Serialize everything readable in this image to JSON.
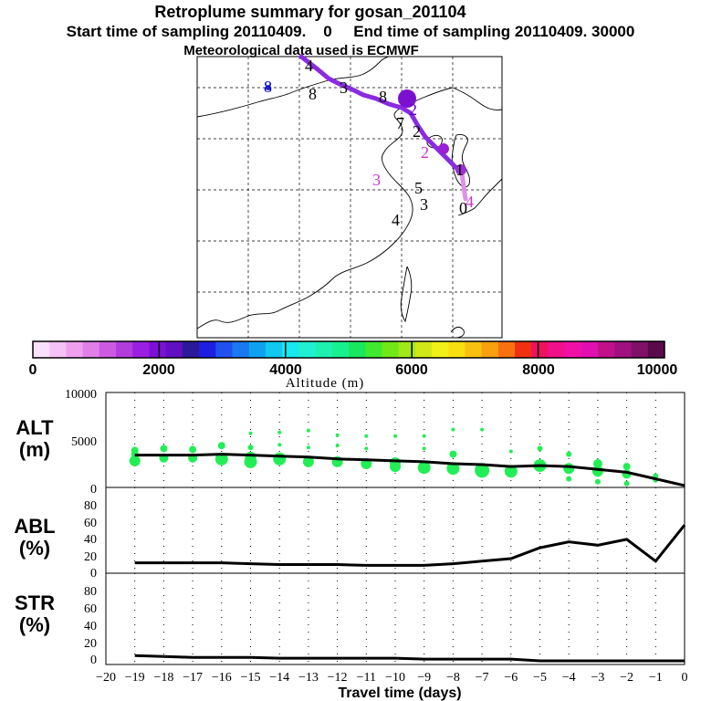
{
  "titles": {
    "line1": "Retroplume summary for gosan_201104",
    "line2": "Start time of sampling 20110409.    0     End time of sampling 20110409. 30000",
    "line3": "Meteorological data used is ECMWF"
  },
  "colors": {
    "trajectory": "#8a2be2",
    "dots": "#22ee55",
    "line": "#000000",
    "grid": "#000000"
  },
  "map": {
    "markers": [
      {
        "label": "4",
        "color": "#000000"
      },
      {
        "label": "8",
        "color": "#0000cc"
      },
      {
        "label": "8",
        "color": "#000000"
      },
      {
        "label": "3",
        "color": "#000000"
      },
      {
        "label": "8",
        "color": "#000000"
      },
      {
        "label": "2",
        "color": "#6a00cc"
      },
      {
        "label": "7",
        "color": "#000000"
      },
      {
        "label": "2",
        "color": "#000000"
      },
      {
        "label": "2",
        "color": "#cc33cc"
      },
      {
        "label": "1",
        "color": "#000000"
      },
      {
        "label": "3",
        "color": "#cc33cc"
      },
      {
        "label": "5",
        "color": "#000000"
      },
      {
        "label": "3",
        "color": "#000000"
      },
      {
        "label": "4",
        "color": "#000000"
      },
      {
        "label": "0",
        "color": "#000000"
      },
      {
        "label": "4",
        "color": "#cc33cc"
      }
    ]
  },
  "colorbar": {
    "tick_labels": [
      "0",
      "2000",
      "4000",
      "6000",
      "8000",
      "10000"
    ],
    "title": "Altitude (m)",
    "swatches": [
      "#fbe0fb",
      "#f4c2f4",
      "#eea0ee",
      "#e07fe8",
      "#cc5ae0",
      "#b33cdc",
      "#9b1fe0",
      "#7d10d8",
      "#6010c0",
      "#2a1a9a",
      "#1e1ee0",
      "#2050f0",
      "#1a78f0",
      "#10a0f0",
      "#10c8f0",
      "#18e8f0",
      "#20f0d0",
      "#1ef0b0",
      "#18f090",
      "#18e860",
      "#40e830",
      "#70e818",
      "#a0e818",
      "#d0e818",
      "#f0f018",
      "#f8e010",
      "#f8c010",
      "#f8a010",
      "#f87010",
      "#f03010",
      "#f01060",
      "#f0108a",
      "#f010a8",
      "#e010b0",
      "#c0108a",
      "#a01080",
      "#801068",
      "#5a0a4a"
    ]
  },
  "chart_data": [
    {
      "type": "scatter+line",
      "name": "ALT",
      "ylabel": "ALT",
      "yunit": "(m)",
      "ylim": [
        0,
        10000
      ],
      "yticks": [
        "10000",
        "5000",
        "0"
      ],
      "x": [
        -19,
        -18,
        -17,
        -16,
        -15,
        -14,
        -13,
        -12,
        -11,
        -10,
        -9,
        -8,
        -7,
        -6,
        -5,
        -4,
        -3,
        -2,
        -1,
        0
      ],
      "line": [
        3400,
        3400,
        3400,
        3500,
        3400,
        3300,
        3200,
        3000,
        2900,
        2800,
        2700,
        2500,
        2400,
        2200,
        2300,
        2200,
        1900,
        1600,
        900,
        200
      ],
      "dots": [
        {
          "x": -19,
          "y": 3900,
          "s": 4
        },
        {
          "x": -19,
          "y": 3500,
          "s": 4
        },
        {
          "x": -19,
          "y": 2800,
          "s": 6
        },
        {
          "x": -18,
          "y": 4100,
          "s": 4
        },
        {
          "x": -18,
          "y": 3100,
          "s": 5
        },
        {
          "x": -17,
          "y": 4000,
          "s": 4
        },
        {
          "x": -17,
          "y": 3100,
          "s": 5
        },
        {
          "x": -16,
          "y": 4400,
          "s": 4
        },
        {
          "x": -16,
          "y": 3000,
          "s": 7
        },
        {
          "x": -15,
          "y": 5700,
          "s": 2
        },
        {
          "x": -15,
          "y": 4200,
          "s": 3
        },
        {
          "x": -15,
          "y": 3200,
          "s": 6
        },
        {
          "x": -15,
          "y": 2700,
          "s": 7
        },
        {
          "x": -14,
          "y": 5800,
          "s": 2
        },
        {
          "x": -14,
          "y": 4500,
          "s": 2
        },
        {
          "x": -14,
          "y": 3000,
          "s": 7
        },
        {
          "x": -13,
          "y": 6000,
          "s": 2
        },
        {
          "x": -13,
          "y": 4200,
          "s": 2
        },
        {
          "x": -13,
          "y": 2700,
          "s": 6
        },
        {
          "x": -12,
          "y": 5500,
          "s": 2
        },
        {
          "x": -12,
          "y": 4400,
          "s": 2
        },
        {
          "x": -12,
          "y": 2700,
          "s": 6
        },
        {
          "x": -11,
          "y": 5400,
          "s": 2
        },
        {
          "x": -11,
          "y": 4100,
          "s": 2
        },
        {
          "x": -11,
          "y": 2500,
          "s": 6
        },
        {
          "x": -10,
          "y": 5400,
          "s": 2
        },
        {
          "x": -10,
          "y": 2600,
          "s": 6
        },
        {
          "x": -10,
          "y": 2200,
          "s": 6
        },
        {
          "x": -9,
          "y": 5400,
          "s": 2
        },
        {
          "x": -9,
          "y": 4100,
          "s": 2
        },
        {
          "x": -9,
          "y": 2100,
          "s": 7
        },
        {
          "x": -8,
          "y": 6100,
          "s": 2
        },
        {
          "x": -8,
          "y": 3500,
          "s": 4
        },
        {
          "x": -8,
          "y": 2000,
          "s": 7
        },
        {
          "x": -7,
          "y": 6100,
          "s": 2
        },
        {
          "x": -7,
          "y": 1800,
          "s": 8
        },
        {
          "x": -6,
          "y": 3800,
          "s": 2
        },
        {
          "x": -6,
          "y": 1700,
          "s": 7
        },
        {
          "x": -5,
          "y": 4100,
          "s": 3
        },
        {
          "x": -5,
          "y": 2300,
          "s": 7
        },
        {
          "x": -4,
          "y": 3500,
          "s": 3
        },
        {
          "x": -4,
          "y": 2000,
          "s": 6
        },
        {
          "x": -4,
          "y": 900,
          "s": 3
        },
        {
          "x": -3,
          "y": 2500,
          "s": 5
        },
        {
          "x": -3,
          "y": 1700,
          "s": 6
        },
        {
          "x": -3,
          "y": 600,
          "s": 3
        },
        {
          "x": -2,
          "y": 2200,
          "s": 4
        },
        {
          "x": -2,
          "y": 1400,
          "s": 5
        },
        {
          "x": -2,
          "y": 400,
          "s": 3
        },
        {
          "x": -1,
          "y": 1200,
          "s": 3
        },
        {
          "x": -1,
          "y": 800,
          "s": 3
        }
      ]
    },
    {
      "type": "line",
      "name": "ABL",
      "ylabel": "ABL",
      "yunit": "(%)",
      "ylim": [
        0,
        100
      ],
      "yticks": [
        "80",
        "60",
        "40",
        "20",
        "0"
      ],
      "x": [
        -19,
        -18,
        -17,
        -16,
        -15,
        -14,
        -13,
        -12,
        -11,
        -10,
        -9,
        -8,
        -7,
        -6,
        -5,
        -4,
        -3,
        -2,
        -1,
        0
      ],
      "values": [
        8,
        8,
        8,
        8,
        7,
        6,
        6,
        6,
        5,
        5,
        5,
        7,
        10,
        13,
        26,
        33,
        29,
        36,
        10,
        53
      ]
    },
    {
      "type": "line",
      "name": "STR",
      "ylabel": "STR",
      "yunit": "(%)",
      "ylim": [
        0,
        100
      ],
      "yticks": [
        "80",
        "60",
        "40",
        "20",
        "0"
      ],
      "x": [
        -19,
        -18,
        -17,
        -16,
        -15,
        -14,
        -13,
        -12,
        -11,
        -10,
        -9,
        -8,
        -7,
        -6,
        -5,
        -4,
        -3,
        -2,
        -1,
        0
      ],
      "values": [
        6,
        5,
        4,
        4,
        4,
        3,
        3,
        3,
        3,
        3,
        2,
        2,
        2,
        2,
        0,
        0,
        0,
        0,
        0,
        0
      ]
    }
  ],
  "xaxis": {
    "ticks": [
      "−20",
      "−19",
      "−18",
      "−17",
      "−16",
      "−15",
      "−14",
      "−13",
      "−12",
      "−11",
      "−10",
      "−9",
      "−8",
      "−7",
      "−6",
      "−5",
      "−4",
      "−3",
      "−2",
      "−1",
      "0"
    ],
    "label": "Travel time (days)"
  }
}
